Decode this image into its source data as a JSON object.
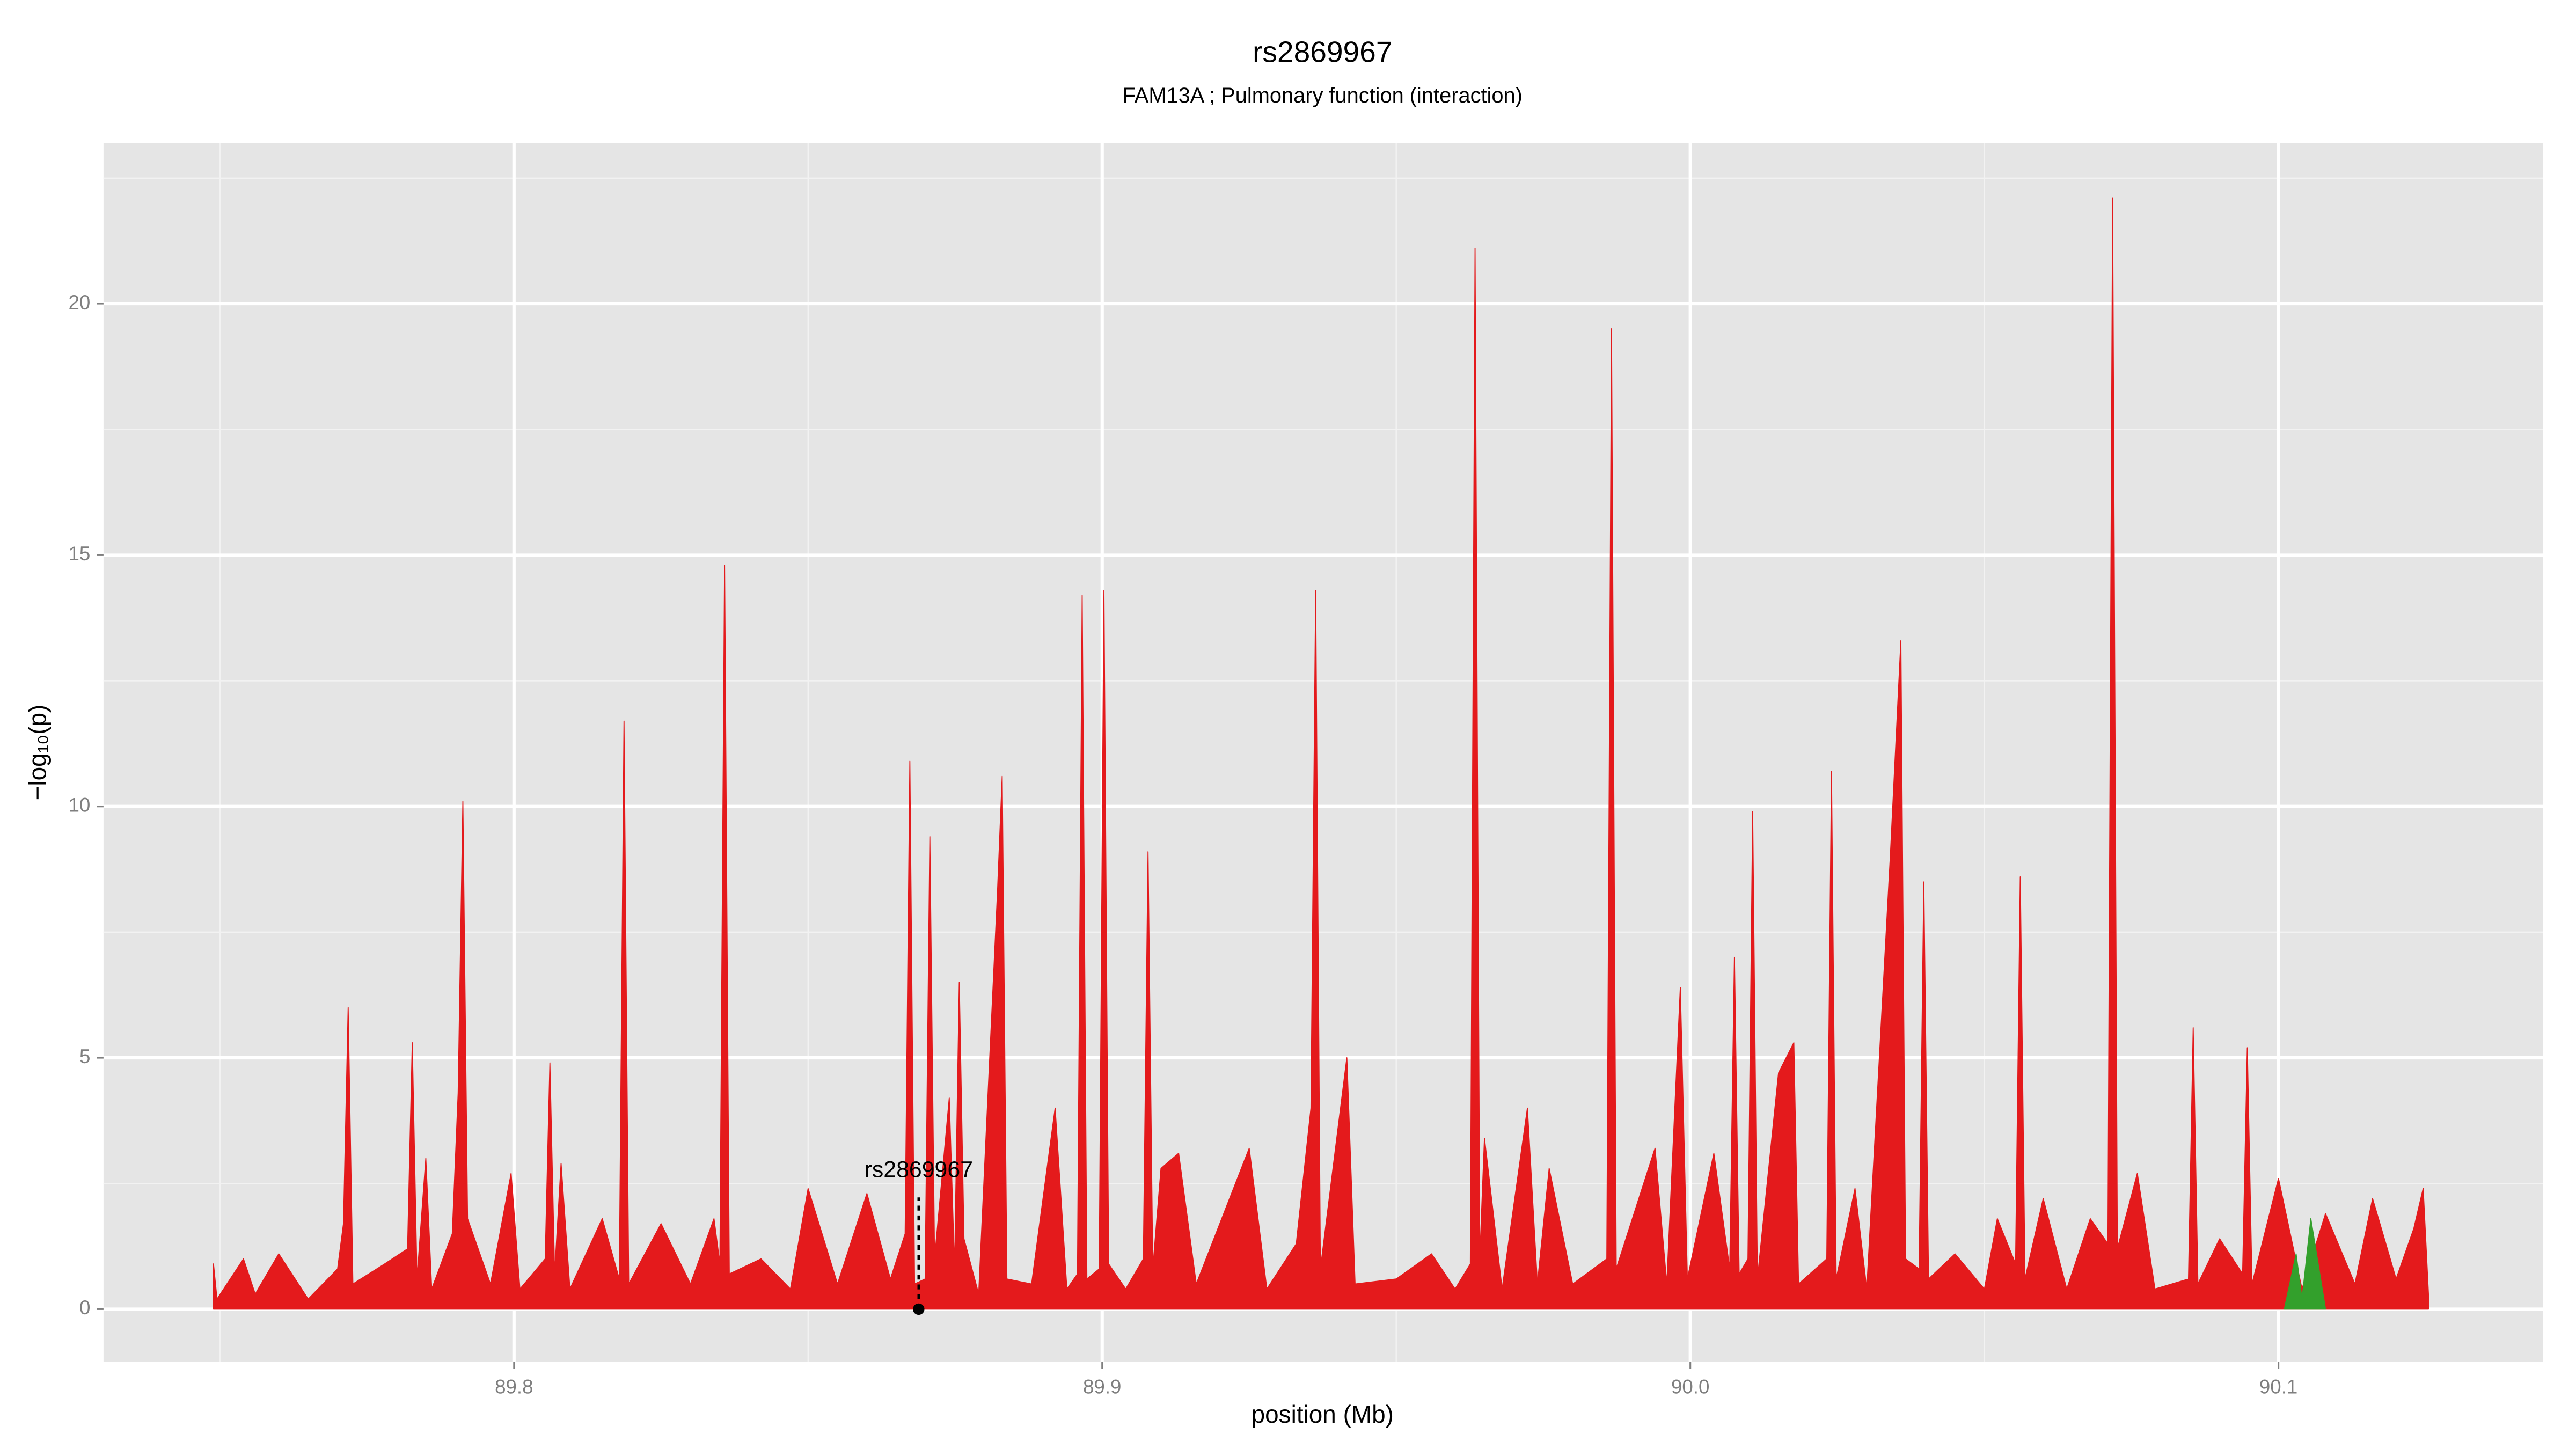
{
  "chart_data": {
    "type": "area",
    "title": "rs2869967",
    "subtitle": "FAM13A ; Pulmonary function (interaction)",
    "xlabel": "position (Mb)",
    "ylabel": "−log₁₀(p)",
    "xlim": [
      89.7302,
      90.145
    ],
    "ylim": [
      -1.05,
      23.2
    ],
    "xticks": [
      89.8,
      89.9,
      {
        "value": 90,
        "label": "90.0"
      },
      90.1
    ],
    "yticks": [
      0,
      5,
      10,
      15,
      20
    ],
    "xminor": [
      89.75,
      89.85,
      89.95,
      90.05
    ],
    "yminor": [
      2.5,
      7.5,
      12.5,
      17.5,
      22.5
    ],
    "grid": true,
    "series": [
      {
        "name": "red",
        "color": "#e41a1c",
        "x": [
          89.7489,
          89.7495,
          89.754,
          89.756,
          89.76,
          89.765,
          89.77,
          89.771,
          89.7718,
          89.7726,
          89.778,
          89.7819,
          89.7827,
          89.7835,
          89.785,
          89.786,
          89.7895,
          89.7905,
          89.7913,
          89.7921,
          89.796,
          89.7995,
          89.801,
          89.8053,
          89.8061,
          89.8069,
          89.808,
          89.8095,
          89.815,
          89.8179,
          89.8187,
          89.8195,
          89.825,
          89.83,
          89.834,
          89.835,
          89.8358,
          89.8366,
          89.842,
          89.847,
          89.85,
          89.855,
          89.86,
          89.864,
          89.8665,
          89.8673,
          89.8681,
          89.8699,
          89.8707,
          89.8715,
          89.874,
          89.8749,
          89.8757,
          89.8765,
          89.879,
          89.8822,
          89.883,
          89.8838,
          89.888,
          89.892,
          89.894,
          89.8958,
          89.8966,
          89.8974,
          89.8995,
          89.9003,
          89.9011,
          89.904,
          89.907,
          89.9078,
          89.9086,
          89.91,
          89.913,
          89.916,
          89.925,
          89.928,
          89.933,
          89.9355,
          89.9363,
          89.9371,
          89.9416,
          89.943,
          89.95,
          89.956,
          89.96,
          89.9626,
          89.9634,
          89.9642,
          89.965,
          89.968,
          89.9723,
          89.974,
          89.976,
          89.98,
          89.9858,
          89.9866,
          89.9874,
          89.994,
          89.996,
          89.9983,
          89.9995,
          90.004,
          90.0067,
          90.0075,
          90.0083,
          90.0098,
          90.0106,
          90.0114,
          90.015,
          90.0176,
          90.0184,
          90.0232,
          90.024,
          90.0248,
          90.028,
          90.03,
          90.034,
          90.0358,
          90.0366,
          90.0389,
          90.0397,
          90.0405,
          90.045,
          90.05,
          90.0522,
          90.0553,
          90.0561,
          90.0569,
          90.06,
          90.064,
          90.068,
          90.071,
          90.0718,
          90.0726,
          90.076,
          90.079,
          90.0847,
          90.0855,
          90.0863,
          90.09,
          90.0939,
          90.0947,
          90.0955,
          90.1,
          90.104,
          90.108,
          90.113,
          90.116,
          90.12,
          90.123,
          90.1246,
          90.1255
        ],
        "values": [
          0.9,
          0.2,
          1.0,
          0.3,
          1.1,
          0.2,
          0.8,
          1.7,
          6.0,
          0.5,
          0.9,
          1.2,
          5.3,
          0.6,
          3.0,
          0.4,
          1.5,
          4.3,
          10.1,
          1.8,
          0.5,
          2.7,
          0.4,
          1.0,
          4.9,
          0.7,
          2.9,
          0.4,
          1.8,
          0.6,
          11.7,
          0.5,
          1.7,
          0.5,
          1.8,
          0.9,
          14.8,
          0.7,
          1.0,
          0.4,
          2.4,
          0.5,
          2.3,
          0.6,
          1.5,
          10.9,
          0.5,
          0.6,
          9.4,
          1.0,
          4.2,
          0.8,
          6.5,
          1.4,
          0.3,
          8.3,
          10.6,
          0.6,
          0.5,
          4.0,
          0.4,
          0.7,
          14.2,
          0.6,
          0.8,
          14.3,
          0.9,
          0.4,
          1.0,
          9.1,
          0.8,
          2.8,
          3.1,
          0.5,
          3.2,
          0.4,
          1.3,
          4.0,
          14.3,
          0.8,
          5.0,
          0.5,
          0.6,
          1.1,
          0.4,
          0.9,
          21.1,
          1.0,
          3.4,
          0.4,
          4.0,
          0.5,
          2.8,
          0.5,
          1.0,
          19.5,
          0.8,
          3.2,
          0.5,
          6.4,
          0.6,
          3.1,
          0.8,
          7.0,
          0.7,
          1.0,
          9.9,
          0.6,
          4.7,
          5.3,
          0.5,
          1.0,
          10.7,
          0.6,
          2.4,
          0.4,
          9.0,
          13.3,
          1.0,
          0.8,
          8.5,
          0.6,
          1.1,
          0.4,
          1.8,
          0.9,
          8.6,
          0.6,
          2.2,
          0.4,
          1.8,
          1.3,
          22.1,
          1.2,
          2.7,
          0.4,
          0.6,
          5.6,
          0.5,
          1.4,
          0.7,
          5.2,
          0.5,
          2.6,
          0.4,
          1.9,
          0.5,
          2.2,
          0.6,
          1.6,
          2.4,
          0.3
        ]
      },
      {
        "name": "green",
        "color": "#33a02c",
        "x": [
          90.101,
          90.103,
          90.104,
          90.1055,
          90.108
        ],
        "values": [
          0,
          1.1,
          0.2,
          1.8,
          0
        ]
      }
    ],
    "annotation": {
      "text": "rs2869967",
      "x": 89.8688,
      "y": 0
    }
  }
}
